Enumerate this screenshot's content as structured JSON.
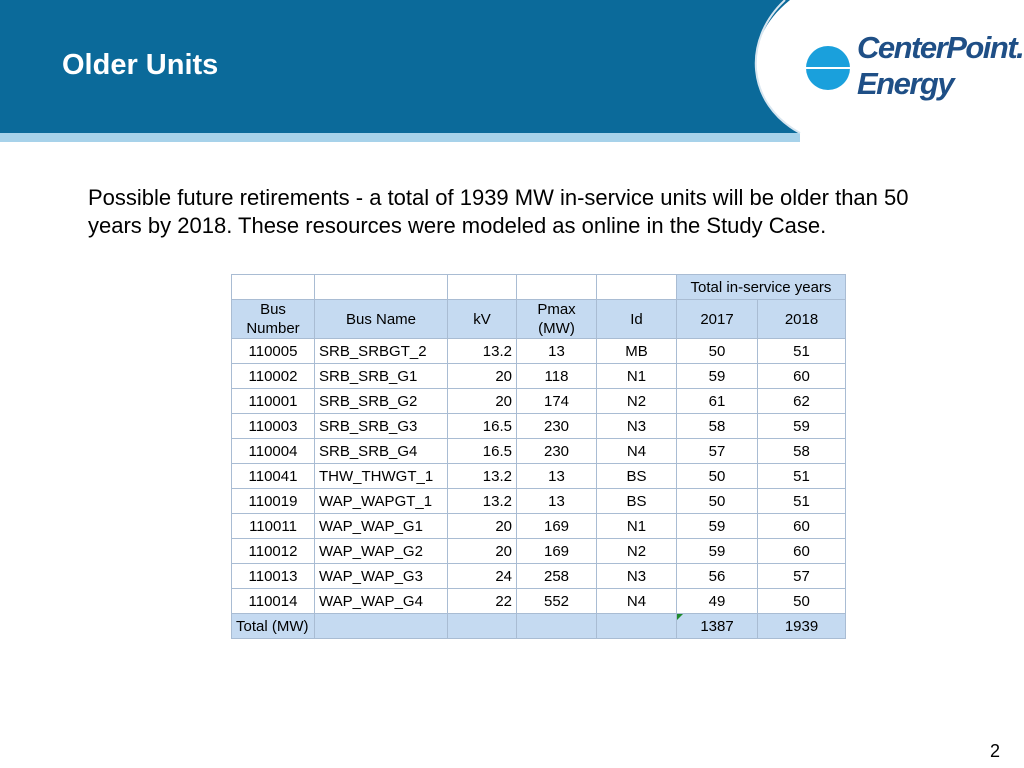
{
  "slide": {
    "title": "Older Units",
    "body": "Possible future retirements -  a total of 1939 MW in-service units will be older than 50 years by 2018.  These resources were modeled as online in the Study Case.",
    "page_number": "2"
  },
  "logo": {
    "line1": "CenterPoint.",
    "line2": "Energy"
  },
  "colors": {
    "header_blue": "#0b6a9a",
    "header_accent": "#a7d2ea",
    "table_header": "#c5daf1",
    "logo_text": "#1f4f86",
    "logo_dot": "#1aa0dc"
  },
  "table": {
    "group_header": "Total in-service years",
    "columns": [
      "Bus\nNumber",
      "Bus Name",
      "kV",
      "Pmax\n(MW)",
      "Id",
      "2017",
      "2018"
    ],
    "rows": [
      [
        "110005",
        "SRB_SRBGT_2",
        "13.2",
        "13",
        "MB",
        "50",
        "51"
      ],
      [
        "110002",
        "SRB_SRB_G1",
        "20",
        "118",
        "N1",
        "59",
        "60"
      ],
      [
        "110001",
        "SRB_SRB_G2",
        "20",
        "174",
        "N2",
        "61",
        "62"
      ],
      [
        "110003",
        "SRB_SRB_G3",
        "16.5",
        "230",
        "N3",
        "58",
        "59"
      ],
      [
        "110004",
        "SRB_SRB_G4",
        "16.5",
        "230",
        "N4",
        "57",
        "58"
      ],
      [
        "110041",
        "THW_THWGT_1",
        "13.2",
        "13",
        "BS",
        "50",
        "51"
      ],
      [
        "110019",
        "WAP_WAPGT_1",
        "13.2",
        "13",
        "BS",
        "50",
        "51"
      ],
      [
        "110011",
        "WAP_WAP_G1",
        "20",
        "169",
        "N1",
        "59",
        "60"
      ],
      [
        "110012",
        "WAP_WAP_G2",
        "20",
        "169",
        "N2",
        "59",
        "60"
      ],
      [
        "110013",
        "WAP_WAP_G3",
        "24",
        "258",
        "N3",
        "56",
        "57"
      ],
      [
        "110014",
        "WAP_WAP_G4",
        "22",
        "552",
        "N4",
        "49",
        "50"
      ]
    ],
    "total": {
      "label": "Total (MW)",
      "y2017": "1387",
      "y2018": "1939"
    }
  }
}
